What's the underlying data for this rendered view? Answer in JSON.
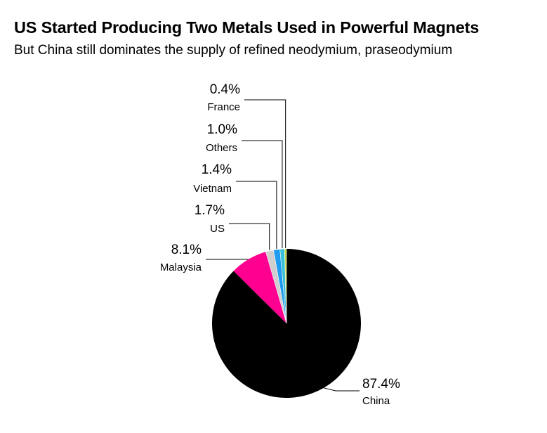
{
  "title": "US Started Producing Two Metals Used in Powerful Magnets",
  "subtitle": "But China still dominates the supply of refined neodymium, praseodymium",
  "chart_data": {
    "type": "pie",
    "title": "US Started Producing Two Metals Used in Powerful Magnets",
    "subtitle": "But China still dominates the supply of refined neodymium, praseodymium",
    "slices": [
      {
        "label": "China",
        "value": 87.4,
        "display": "87.4%",
        "color": "#000000"
      },
      {
        "label": "Malaysia",
        "value": 8.1,
        "display": "8.1%",
        "color": "#ff0090"
      },
      {
        "label": "US",
        "value": 1.7,
        "display": "1.7%",
        "color": "#cfcfcf"
      },
      {
        "label": "Vietnam",
        "value": 1.4,
        "display": "1.4%",
        "color": "#1f9bf0"
      },
      {
        "label": "Others",
        "value": 1.0,
        "display": "1.0%",
        "color": "#39c0d8"
      },
      {
        "label": "France",
        "value": 0.4,
        "display": "0.4%",
        "color": "#c6d93b"
      }
    ]
  }
}
